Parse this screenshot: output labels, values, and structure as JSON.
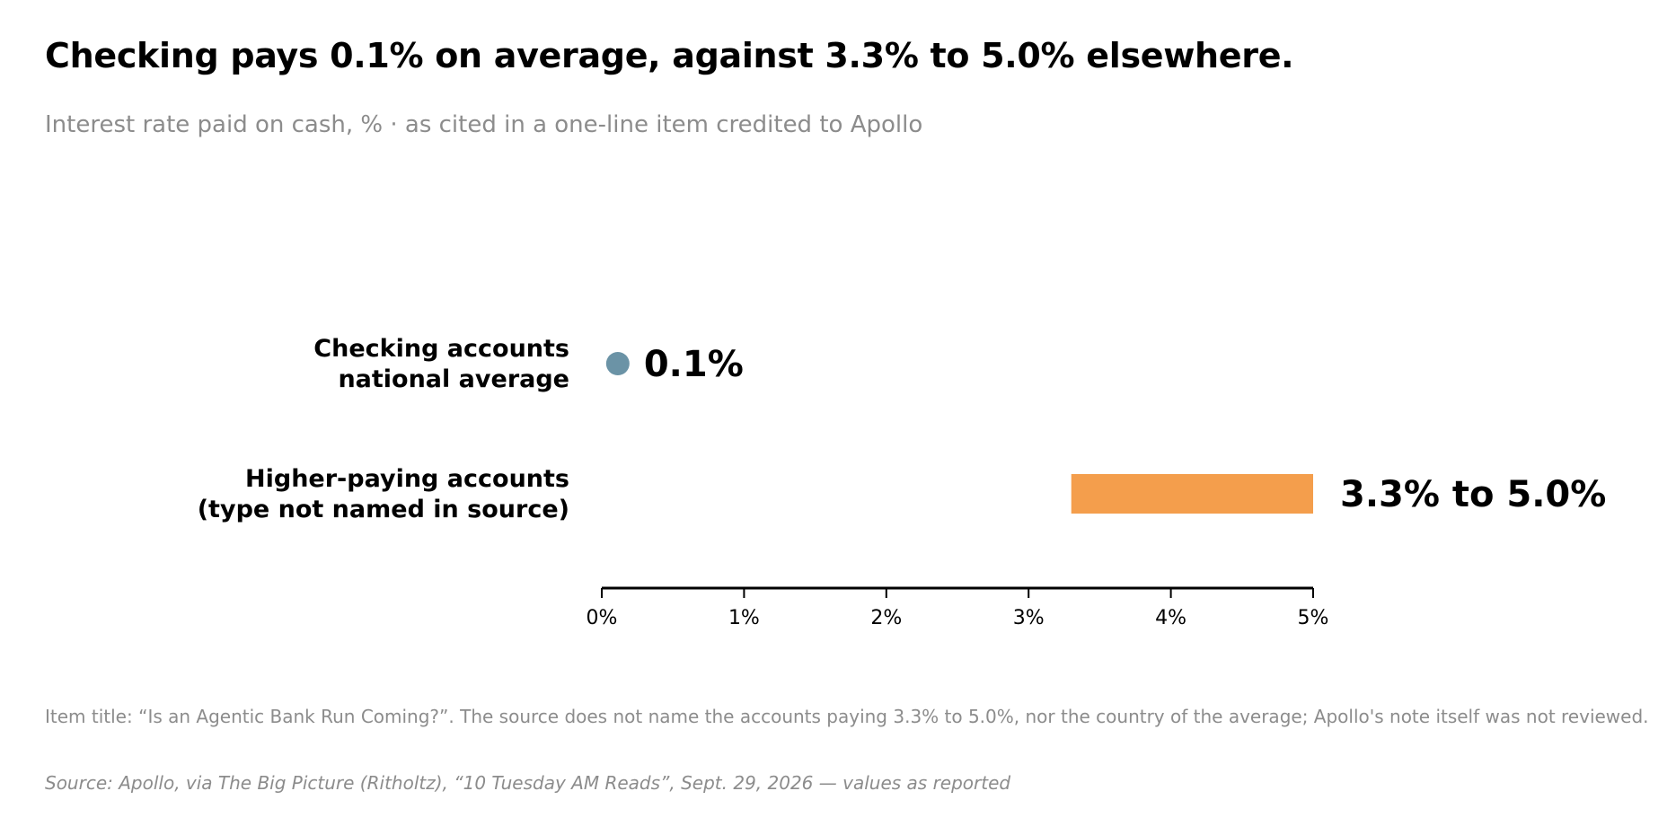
{
  "header": {
    "title": "Checking pays 0.1% on average, against 3.3% to 5.0% elsewhere.",
    "subtitle": "Interest rate paid on cash, %  ·  as cited in a one-line item credited to Apollo"
  },
  "footer": {
    "note": "Item title: “Is an Agentic Bank Run Coming?”. The source does not name the accounts paying 3.3% to 5.0%, nor the country of the average; Apollo's note itself was not reviewed.",
    "source": "Source: Apollo, via The Big Picture (Ritholtz), “10 Tuesday AM Reads”, Sept. 29, 2026 — values as reported"
  },
  "chart_data": {
    "type": "range-dot",
    "title": "Checking pays 0.1% on average, against 3.3% to 5.0% elsewhere.",
    "subtitle": "Interest rate paid on cash, %  ·  as cited in a one-line item credited to Apollo",
    "xlabel": "",
    "ylabel": "",
    "xlim": [
      0,
      5
    ],
    "ticks": [
      {
        "value": 0,
        "label": "0%"
      },
      {
        "value": 1,
        "label": "1%"
      },
      {
        "value": 2,
        "label": "2%"
      },
      {
        "value": 3,
        "label": "3%"
      },
      {
        "value": 4,
        "label": "4%"
      },
      {
        "value": 5,
        "label": "5%"
      }
    ],
    "grid": false,
    "legend": "none",
    "rows": [
      {
        "label_lines": [
          "Checking accounts",
          "national average"
        ],
        "mark": "point",
        "value": 0.1,
        "value_label": "0.1%",
        "color": "#6b93a6"
      },
      {
        "label_lines": [
          "Higher-paying accounts",
          "(type not named in source)"
        ],
        "mark": "range",
        "low": 3.3,
        "high": 5.0,
        "value_label": "3.3% to 5.0%",
        "color": "#f49e4c"
      }
    ]
  }
}
